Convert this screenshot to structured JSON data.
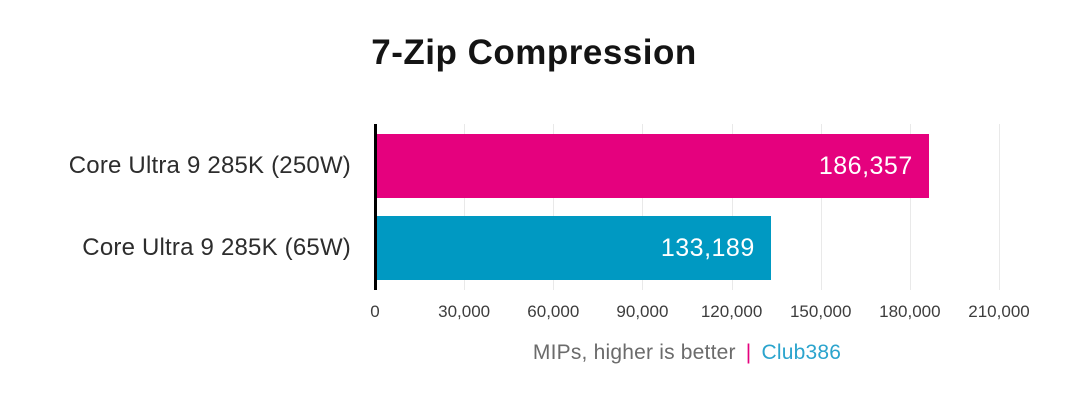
{
  "chart_data": {
    "type": "bar",
    "orientation": "horizontal",
    "title": "7-Zip Compression",
    "categories": [
      "Core Ultra 9 285K (250W)",
      "Core Ultra 9 285K (65W)"
    ],
    "values": [
      186357,
      133189
    ],
    "value_labels": [
      "186,357",
      "133,189"
    ],
    "bar_colors": [
      "#E5017E",
      "#0099C2"
    ],
    "xlim": [
      0,
      210000
    ],
    "x_ticks": [
      0,
      30000,
      60000,
      90000,
      120000,
      150000,
      180000,
      210000
    ],
    "x_tick_labels": [
      "0",
      "30,000",
      "60,000",
      "90,000",
      "120,000",
      "150,000",
      "180,000",
      "210,000"
    ],
    "xlabel": "MIPs, higher is better",
    "grid": "vertical",
    "legend": "none"
  },
  "caption": {
    "text": "MIPs, higher is better",
    "separator": "|",
    "brand": "Club386",
    "text_color": "#6b6b6b",
    "separator_color": "#E5017E",
    "brand_color": "#2BA4CD"
  },
  "colors": {
    "background": "#ffffff",
    "title": "#141414",
    "axis": "#000000",
    "gridline": "#e9e9e9",
    "tick_label": "#3d3d3d",
    "category_label": "#2d2d2d",
    "bar_value_label": "#ffffff"
  }
}
